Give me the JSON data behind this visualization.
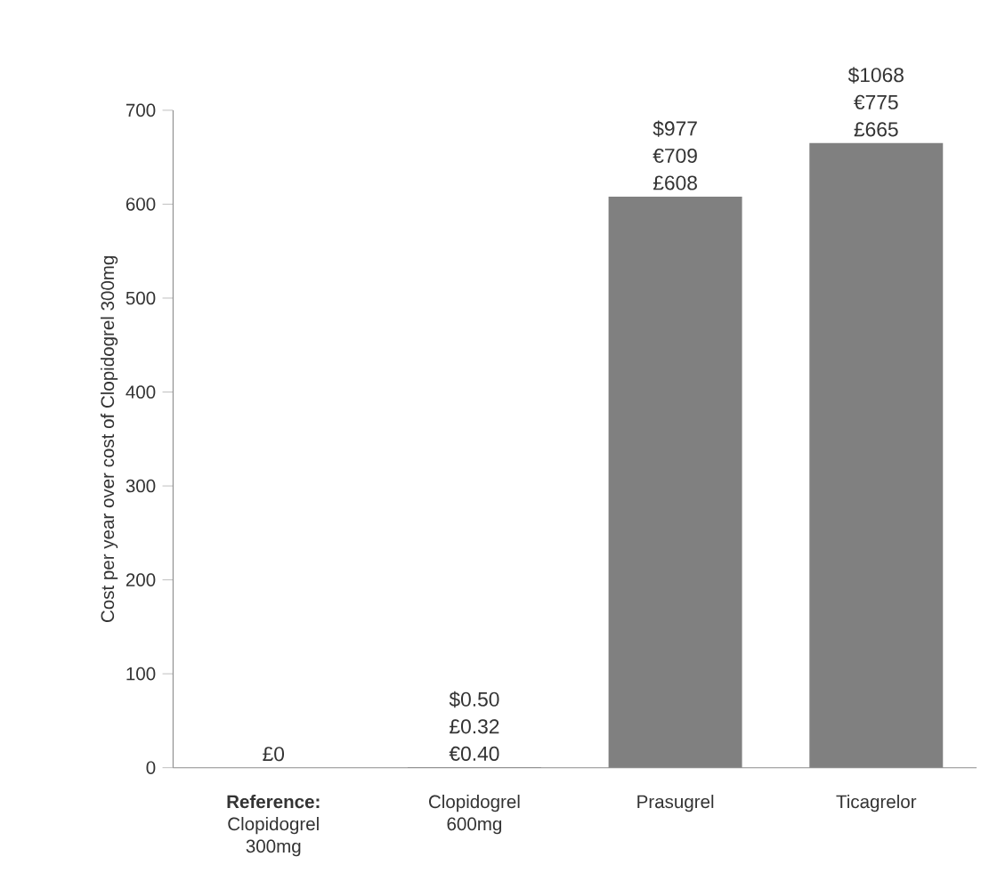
{
  "chart_data": {
    "type": "bar",
    "ylabel": "Cost per year over cost of Clopidogrel 300mg",
    "categories": [
      "**Reference:** Clopidogrel 300mg",
      "Clopidogrel 600mg",
      "Prasugrel",
      "Ticagrelor"
    ],
    "values": [
      0,
      0.32,
      608,
      665
    ],
    "value_labels": [
      "£0",
      "$0.50 £0.32 €0.40",
      "$977 €709 £608",
      "$1068 €775 £665"
    ],
    "color": "#808080",
    "ylim": [
      0,
      700
    ],
    "yticks": [
      0,
      100,
      200,
      300,
      400,
      500,
      600,
      700
    ],
    "grid": false
  }
}
